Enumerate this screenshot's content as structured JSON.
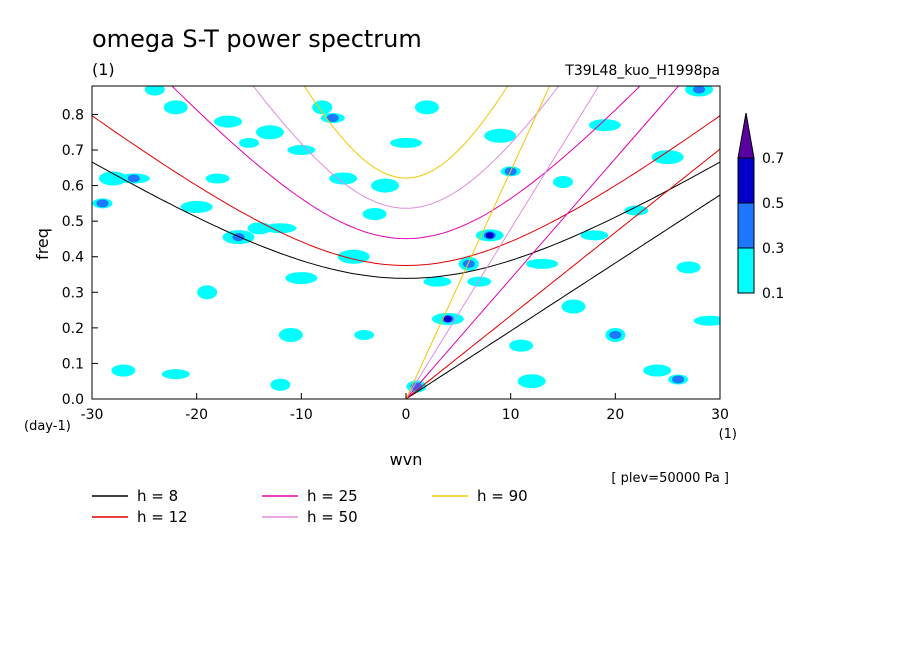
{
  "chart_data": {
    "type": "heatmap",
    "title": "omega S-T power spectrum",
    "units_label": "(1)",
    "run_label": "T39L48_kuo_H1998pa",
    "xlabel": "wvn",
    "ylabel": "freq",
    "x_unit": "(1)",
    "y_unit": "(day-1)",
    "xlim": [
      -30,
      30
    ],
    "ylim": [
      0,
      0.88
    ],
    "x_ticks": [
      "-30",
      "-20",
      "-10",
      "0",
      "10",
      "20",
      "30"
    ],
    "y_ticks": [
      "0.0",
      "0.1",
      "0.2",
      "0.3",
      "0.4",
      "0.5",
      "0.6",
      "0.7",
      "0.8"
    ],
    "annotation": "[ plev=50000 Pa ]",
    "colorbar": {
      "levels": [
        "0.1",
        "0.3",
        "0.5",
        "0.7"
      ],
      "colors": [
        "#00ffff",
        "#1e78ff",
        "#0000c8",
        "#5a00a0"
      ]
    },
    "legend": [
      {
        "label": "h =  8",
        "color": "#000000"
      },
      {
        "label": "h = 25",
        "color": "#e000b4"
      },
      {
        "label": "h = 90",
        "color": "#f0c800"
      },
      {
        "label": "h = 12",
        "color": "#e00000"
      },
      {
        "label": "h = 50",
        "color": "#e08ce0"
      }
    ],
    "series": [
      {
        "name": "h = 8",
        "color": "#000000",
        "equivalent_depth": 8
      },
      {
        "name": "h = 12",
        "color": "#e00000",
        "equivalent_depth": 12
      },
      {
        "name": "h = 25",
        "color": "#e000b4",
        "equivalent_depth": 25
      },
      {
        "name": "h = 50",
        "color": "#e08ce0",
        "equivalent_depth": 50
      },
      {
        "name": "h = 90",
        "color": "#f0c800",
        "equivalent_depth": 90
      }
    ],
    "blobs": [
      {
        "x": -29,
        "y": 0.55,
        "v": 0.35
      },
      {
        "x": -27,
        "y": 0.08,
        "v": 0.1
      },
      {
        "x": -28,
        "y": 0.62,
        "v": 0.1
      },
      {
        "x": -26,
        "y": 0.62,
        "v": 0.35
      },
      {
        "x": -24,
        "y": 0.87,
        "v": 0.1
      },
      {
        "x": -22,
        "y": 0.82,
        "v": 0.1
      },
      {
        "x": -22,
        "y": 0.07,
        "v": 0.1
      },
      {
        "x": -20,
        "y": 0.54,
        "v": 0.1
      },
      {
        "x": -19,
        "y": 0.3,
        "v": 0.1
      },
      {
        "x": -18,
        "y": 0.62,
        "v": 0.1
      },
      {
        "x": -17,
        "y": 0.78,
        "v": 0.1
      },
      {
        "x": -16,
        "y": 0.455,
        "v": 0.35
      },
      {
        "x": -15,
        "y": 0.72,
        "v": 0.1
      },
      {
        "x": -14,
        "y": 0.48,
        "v": 0.1
      },
      {
        "x": -13,
        "y": 0.75,
        "v": 0.1
      },
      {
        "x": -12,
        "y": 0.48,
        "v": 0.1
      },
      {
        "x": -12,
        "y": 0.04,
        "v": 0.1
      },
      {
        "x": -11,
        "y": 0.18,
        "v": 0.1
      },
      {
        "x": -10,
        "y": 0.7,
        "v": 0.1
      },
      {
        "x": -10,
        "y": 0.34,
        "v": 0.1
      },
      {
        "x": -8,
        "y": 0.82,
        "v": 0.1
      },
      {
        "x": -7,
        "y": 0.79,
        "v": 0.35
      },
      {
        "x": -6,
        "y": 0.62,
        "v": 0.1
      },
      {
        "x": -5,
        "y": 0.4,
        "v": 0.1
      },
      {
        "x": -4,
        "y": 0.18,
        "v": 0.1
      },
      {
        "x": -3,
        "y": 0.52,
        "v": 0.1
      },
      {
        "x": -2,
        "y": 0.6,
        "v": 0.1
      },
      {
        "x": 0,
        "y": 0.72,
        "v": 0.1
      },
      {
        "x": 1,
        "y": 0.035,
        "v": 0.35
      },
      {
        "x": 2,
        "y": 0.82,
        "v": 0.1
      },
      {
        "x": 3,
        "y": 0.33,
        "v": 0.1
      },
      {
        "x": 4,
        "y": 0.225,
        "v": 0.55
      },
      {
        "x": 6,
        "y": 0.38,
        "v": 0.35
      },
      {
        "x": 7,
        "y": 0.33,
        "v": 0.1
      },
      {
        "x": 8,
        "y": 0.46,
        "v": 0.55
      },
      {
        "x": 9,
        "y": 0.74,
        "v": 0.1
      },
      {
        "x": 10,
        "y": 0.64,
        "v": 0.35
      },
      {
        "x": 11,
        "y": 0.15,
        "v": 0.1
      },
      {
        "x": 12,
        "y": 0.05,
        "v": 0.1
      },
      {
        "x": 13,
        "y": 0.38,
        "v": 0.1
      },
      {
        "x": 15,
        "y": 0.61,
        "v": 0.1
      },
      {
        "x": 16,
        "y": 0.26,
        "v": 0.1
      },
      {
        "x": 18,
        "y": 0.46,
        "v": 0.1
      },
      {
        "x": 19,
        "y": 0.77,
        "v": 0.1
      },
      {
        "x": 20,
        "y": 0.18,
        "v": 0.35
      },
      {
        "x": 22,
        "y": 0.53,
        "v": 0.1
      },
      {
        "x": 24,
        "y": 0.08,
        "v": 0.1
      },
      {
        "x": 25,
        "y": 0.68,
        "v": 0.1
      },
      {
        "x": 26,
        "y": 0.055,
        "v": 0.35
      },
      {
        "x": 27,
        "y": 0.37,
        "v": 0.1
      },
      {
        "x": 28,
        "y": 0.87,
        "v": 0.35
      },
      {
        "x": 29,
        "y": 0.22,
        "v": 0.1
      }
    ]
  }
}
